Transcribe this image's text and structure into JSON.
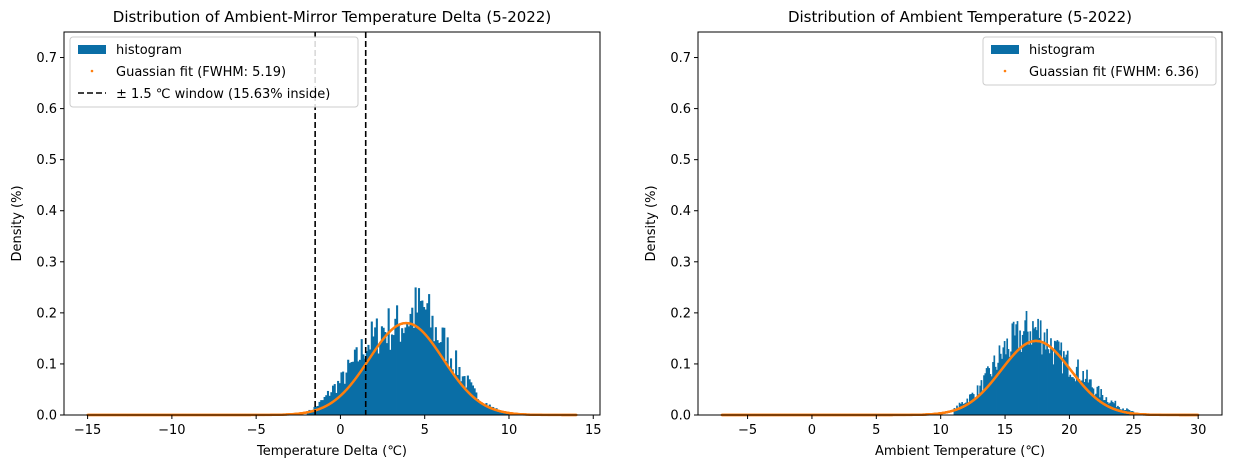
{
  "colors": {
    "hist": "#0a6ea6",
    "fit": "#ff7f0e",
    "window": "#000000",
    "axis": "#000000"
  },
  "chart_data": [
    {
      "type": "histogram",
      "title": "Distribution of Ambient-Mirror Temperature Delta (5-2022)",
      "xlabel": "Temperature Delta (℃)",
      "ylabel": "Density (%)",
      "xlim": [
        -16.4,
        15.4
      ],
      "ylim": [
        0,
        0.75
      ],
      "xticks": [
        -15,
        -10,
        -5,
        0,
        5,
        10,
        15
      ],
      "xtick_labels": [
        "−15",
        "−10",
        "−5",
        "0",
        "5",
        "10",
        "15"
      ],
      "yticks": [
        0.0,
        0.1,
        0.2,
        0.3,
        0.4,
        0.5,
        0.6,
        0.7
      ],
      "ytick_labels": [
        "0.0",
        "0.1",
        "0.2",
        "0.3",
        "0.4",
        "0.5",
        "0.6",
        "0.7"
      ],
      "legend_position": "top-left",
      "series": [
        {
          "name": "histogram",
          "kind": "bars",
          "bin_width": 0.1,
          "x": [
            -2.0,
            -1.5,
            -1.0,
            -0.5,
            0.0,
            0.5,
            1.0,
            1.5,
            2.0,
            2.5,
            3.0,
            3.5,
            4.0,
            4.5,
            5.0,
            5.5,
            6.0,
            6.5,
            7.0,
            7.5,
            8.0,
            8.5,
            9.0,
            9.5,
            10.0
          ],
          "values": [
            0.005,
            0.015,
            0.03,
            0.05,
            0.065,
            0.09,
            0.11,
            0.14,
            0.15,
            0.17,
            0.17,
            0.175,
            0.19,
            0.205,
            0.21,
            0.17,
            0.15,
            0.12,
            0.09,
            0.065,
            0.04,
            0.025,
            0.015,
            0.007,
            0.003
          ]
        },
        {
          "name": "Guassian fit (FWHM: 5.19)",
          "kind": "points",
          "mean": 3.9,
          "fwhm": 5.19,
          "peak": 0.18,
          "range": [
            -15,
            14
          ]
        }
      ],
      "vlines": {
        "name": "± 1.5 ℃ window (15.63% inside)",
        "x": [
          -1.5,
          1.5
        ]
      }
    },
    {
      "type": "histogram",
      "title": "Distribution of Ambient Temperature (5-2022)",
      "xlabel": "Ambient Temperature (℃)",
      "ylabel": "Density (%)",
      "xlim": [
        -8.85,
        31.85
      ],
      "ylim": [
        0,
        0.75
      ],
      "xticks": [
        -5,
        0,
        5,
        10,
        15,
        20,
        25,
        30
      ],
      "xtick_labels": [
        "−5",
        "0",
        "5",
        "10",
        "15",
        "20",
        "25",
        "30"
      ],
      "yticks": [
        0.0,
        0.1,
        0.2,
        0.3,
        0.4,
        0.5,
        0.6,
        0.7
      ],
      "ytick_labels": [
        "0.0",
        "0.1",
        "0.2",
        "0.3",
        "0.4",
        "0.5",
        "0.6",
        "0.7"
      ],
      "legend_position": "top-right",
      "series": [
        {
          "name": "histogram",
          "kind": "bars",
          "bin_width": 0.1,
          "x": [
            11,
            12,
            13,
            14,
            15,
            16,
            17,
            18,
            19,
            20,
            21,
            22,
            23,
            24,
            25
          ],
          "values": [
            0.01,
            0.03,
            0.05,
            0.09,
            0.13,
            0.15,
            0.17,
            0.16,
            0.12,
            0.1,
            0.08,
            0.05,
            0.03,
            0.015,
            0.005
          ]
        },
        {
          "name": "Guassian fit (FWHM: 6.36)",
          "kind": "points",
          "mean": 17.4,
          "fwhm": 6.36,
          "peak": 0.145,
          "range": [
            -7,
            30
          ]
        }
      ]
    }
  ]
}
